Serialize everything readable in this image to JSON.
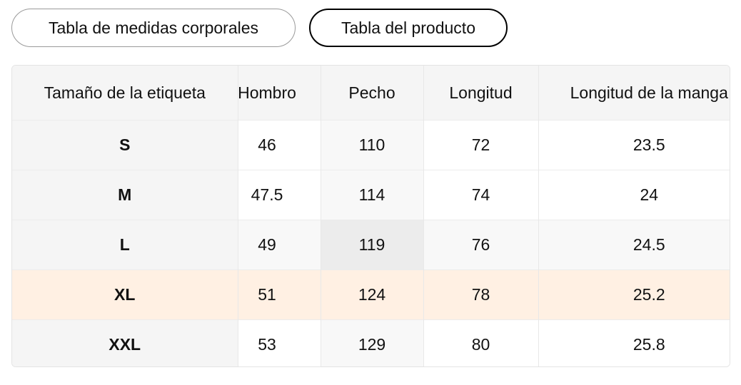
{
  "tabs": [
    "Tabla de medidas corporales",
    "Tabla del producto"
  ],
  "table": {
    "header": [
      "Tamaño de la etiqueta",
      "Hombro",
      "Pecho",
      "Longitud",
      "Longitud de la manga"
    ],
    "rows": [
      [
        "S",
        "46",
        "110",
        "72",
        "23.5"
      ],
      [
        "M",
        "47.5",
        "114",
        "74",
        "24"
      ],
      [
        "L",
        "49",
        "119",
        "76",
        "24.5"
      ],
      [
        "XL",
        "51",
        "124",
        "78",
        "25.2"
      ],
      [
        "XXL",
        "53",
        "129",
        "80",
        "25.8"
      ]
    ]
  }
}
